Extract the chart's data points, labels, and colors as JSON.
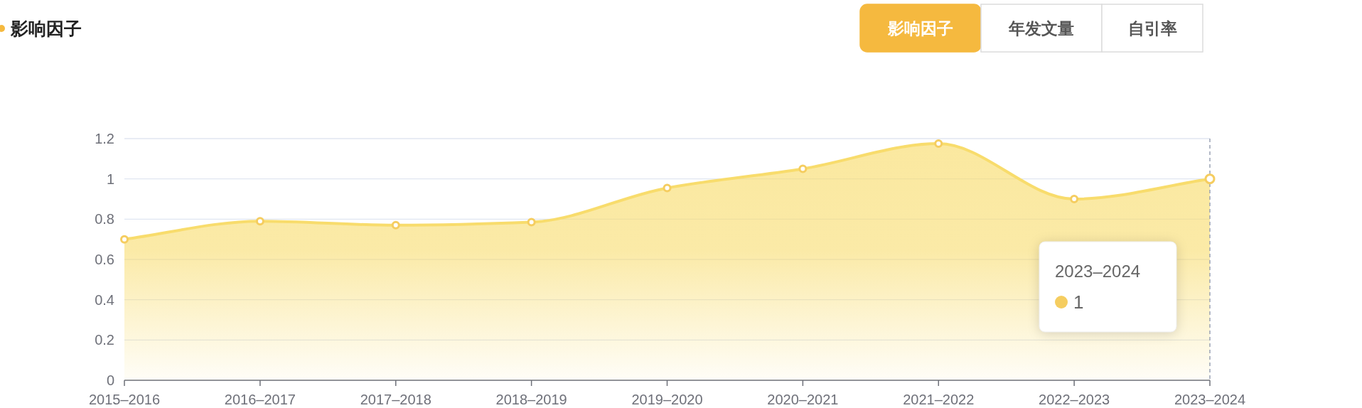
{
  "chart_data": {
    "type": "area",
    "title": "影响因子",
    "categories": [
      "2015–2016",
      "2016–2017",
      "2017–2018",
      "2018–2019",
      "2019–2020",
      "2020–2021",
      "2021–2022",
      "2022–2023",
      "2023–2024"
    ],
    "series": [
      {
        "color": "#f8dc6c",
        "values": [
          0.7,
          0.79,
          0.77,
          0.785,
          0.955,
          1.05,
          1.175,
          0.9,
          1.0
        ]
      }
    ],
    "ylim": [
      0,
      1.2
    ],
    "yticks": [
      0,
      0.2,
      0.4,
      0.6,
      0.8,
      1,
      1.2
    ],
    "grid": "y",
    "marker": "circle",
    "ref_lines": [
      {
        "axis": "x",
        "value": "2023–2024",
        "color": "#9aa3b5",
        "line_style": "dashed"
      }
    ],
    "annotations": [
      "影响因子",
      "年发文量",
      "自引率",
      "2023–2024",
      "1"
    ]
  }
}
